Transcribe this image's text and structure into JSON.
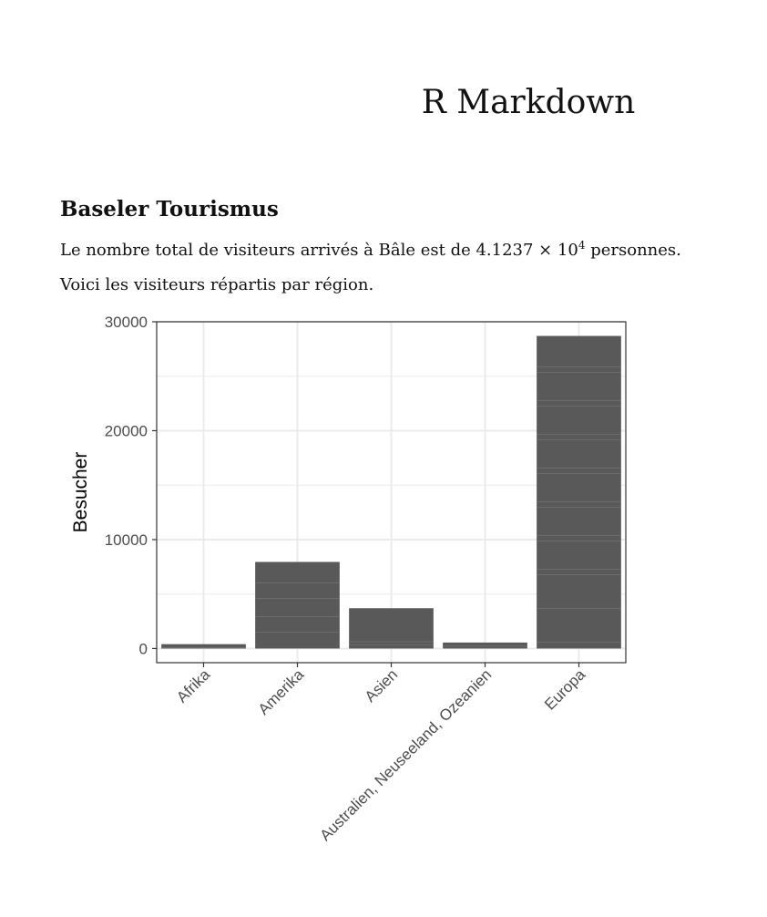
{
  "document": {
    "title": "R Markdown",
    "section_heading": "Baseler Tourismus",
    "paragraph1": {
      "before": "Le nombre total de visiteurs arrivés à Bâle est de 4.1237 × 10",
      "exponent": "4",
      "after": " personnes."
    },
    "paragraph2": "Voici les visiteurs répartis par région."
  },
  "chart_data": {
    "type": "bar",
    "categories": [
      "Afrika",
      "Amerika",
      "Asien",
      "Australien, Neuseeland, Ozeanien",
      "Europa"
    ],
    "values": [
      400,
      7950,
      3700,
      550,
      28700
    ],
    "title": "",
    "xlabel": "",
    "ylabel": "Besucher",
    "ylim": [
      -1300,
      30000
    ],
    "yticks": [
      0,
      10000,
      20000,
      30000
    ],
    "yticklabels": [
      "0",
      "10000",
      "20000",
      "30000"
    ],
    "grid": true,
    "legend": "none",
    "colors": {
      "bar": "#595959",
      "grid": "#ebebeb",
      "axis_text": "#4d4d4d",
      "panel_border": "#333333"
    }
  }
}
